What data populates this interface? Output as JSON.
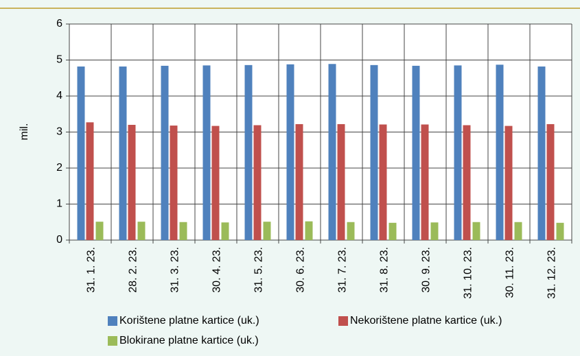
{
  "chart_data": {
    "type": "bar",
    "y_label": "mil.",
    "categories": [
      "31. 1. 23.",
      "28. 2. 23.",
      "31. 3. 23.",
      "30. 4. 23.",
      "31. 5. 23.",
      "30. 6. 23.",
      "31. 7. 23.",
      "31. 8. 23.",
      "30. 9. 23.",
      "31. 10. 23.",
      "30. 11. 23.",
      "31. 12. 23."
    ],
    "series": [
      {
        "name": "Korištene platne kartice  (uk.)",
        "color": "#4f81bd",
        "values": [
          4.82,
          4.82,
          4.84,
          4.85,
          4.86,
          4.88,
          4.89,
          4.86,
          4.84,
          4.85,
          4.87,
          4.82
        ]
      },
      {
        "name": "Nekorištene platne kartice  (uk.)",
        "color": "#c0504d",
        "values": [
          3.27,
          3.2,
          3.18,
          3.17,
          3.19,
          3.22,
          3.22,
          3.21,
          3.21,
          3.19,
          3.17,
          3.22
        ]
      },
      {
        "name": "Blokirane platne kartice  (uk.)",
        "color": "#9bbb59",
        "values": [
          0.51,
          0.51,
          0.5,
          0.49,
          0.51,
          0.52,
          0.5,
          0.48,
          0.49,
          0.5,
          0.5,
          0.48
        ]
      }
    ],
    "ylim": [
      0,
      6
    ],
    "yticks": [
      0,
      1,
      2,
      3,
      4,
      5,
      6
    ],
    "grid": true
  }
}
